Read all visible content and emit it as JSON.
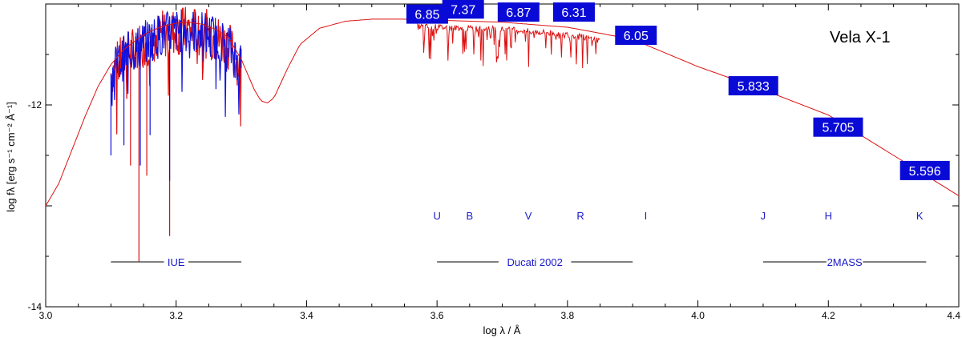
{
  "chart_data": {
    "type": "line",
    "title": "Vela X-1",
    "xlabel": "log λ / Å",
    "ylabel": "log fλ [erg s⁻¹ cm⁻² Å⁻¹]",
    "xlim": [
      3.0,
      4.4
    ],
    "ylim": [
      -14,
      -11.0
    ],
    "xticks": [
      "3.0",
      "3.2",
      "3.4",
      "3.6",
      "3.8",
      "4.0",
      "4.2",
      "4.4"
    ],
    "yticks": [
      "-12",
      "-14"
    ],
    "grid": false,
    "model_sed": {
      "color": "#dd1111",
      "x": [
        3.0,
        3.02,
        3.04,
        3.06,
        3.08,
        3.1,
        3.12,
        3.14,
        3.16,
        3.18,
        3.2,
        3.22,
        3.24,
        3.26,
        3.28,
        3.3,
        3.31,
        3.32,
        3.33,
        3.34,
        3.35,
        3.37,
        3.39,
        3.42,
        3.46,
        3.5,
        3.55,
        3.6,
        3.7,
        3.8,
        3.9,
        4.0,
        4.1,
        4.2,
        4.3,
        4.4
      ],
      "y": [
        -13.0,
        -12.78,
        -12.45,
        -12.12,
        -11.82,
        -11.6,
        -11.45,
        -11.35,
        -11.27,
        -11.22,
        -11.19,
        -11.18,
        -11.2,
        -11.25,
        -11.33,
        -11.55,
        -11.7,
        -11.85,
        -11.96,
        -11.98,
        -11.93,
        -11.65,
        -11.4,
        -11.24,
        -11.17,
        -11.15,
        -11.15,
        -11.16,
        -11.18,
        -11.23,
        -11.35,
        -11.62,
        -11.85,
        -12.1,
        -12.5,
        -12.9
      ]
    },
    "observed_spectra": [
      {
        "name": "IUE",
        "x_range": [
          3.1,
          3.3
        ]
      },
      {
        "name": "Ducati 2002",
        "x_range": [
          3.57,
          3.85
        ]
      }
    ],
    "photometry": [
      {
        "x": 3.585,
        "y": -11.1,
        "label": "6.85"
      },
      {
        "x": 3.64,
        "y": -11.05,
        "label": "7.37"
      },
      {
        "x": 3.725,
        "y": -11.08,
        "label": "6.87"
      },
      {
        "x": 3.81,
        "y": -11.08,
        "label": "6.31"
      },
      {
        "x": 3.905,
        "y": -11.31,
        "label": "6.05"
      },
      {
        "x": 4.085,
        "y": -11.81,
        "label": "5.833"
      },
      {
        "x": 4.215,
        "y": -12.22,
        "label": "5.705"
      },
      {
        "x": 4.348,
        "y": -12.65,
        "label": "5.596"
      }
    ],
    "filters": [
      {
        "name": "U",
        "x": 3.6
      },
      {
        "name": "B",
        "x": 3.65
      },
      {
        "name": "V",
        "x": 3.74
      },
      {
        "name": "R",
        "x": 3.82
      },
      {
        "name": "I",
        "x": 3.92
      },
      {
        "name": "J",
        "x": 4.1
      },
      {
        "name": "H",
        "x": 4.2
      },
      {
        "name": "K",
        "x": 4.34
      }
    ],
    "bands": [
      {
        "name": "IUE",
        "x_range": [
          3.1,
          3.3
        ]
      },
      {
        "name": "Ducati 2002",
        "x_range": [
          3.6,
          3.9
        ]
      },
      {
        "name": "2MASS",
        "x_range": [
          4.1,
          4.35
        ]
      }
    ]
  },
  "colors": {
    "model": "#dd1111",
    "iue_observed": "#1111dd",
    "box": "#0a0ad6",
    "band_text": "#1a1acc"
  }
}
